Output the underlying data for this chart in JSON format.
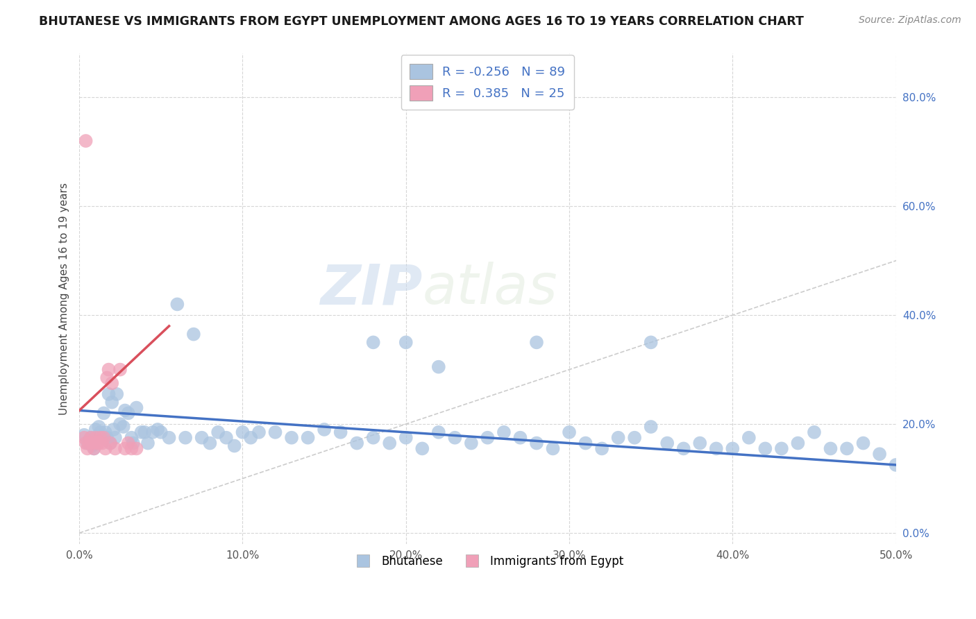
{
  "title": "BHUTANESE VS IMMIGRANTS FROM EGYPT UNEMPLOYMENT AMONG AGES 16 TO 19 YEARS CORRELATION CHART",
  "source": "Source: ZipAtlas.com",
  "ylabel": "Unemployment Among Ages 16 to 19 years",
  "xlim": [
    0.0,
    0.5
  ],
  "ylim": [
    -0.02,
    0.88
  ],
  "xticks": [
    0.0,
    0.1,
    0.2,
    0.3,
    0.4,
    0.5
  ],
  "xticklabels": [
    "0.0%",
    "10.0%",
    "20.0%",
    "30.0%",
    "40.0%",
    "50.0%"
  ],
  "yticks": [
    0.0,
    0.2,
    0.4,
    0.6,
    0.8
  ],
  "yticklabels": [
    "0.0%",
    "20.0%",
    "40.0%",
    "60.0%",
    "80.0%"
  ],
  "bhutanese_color": "#aac4e0",
  "egypt_color": "#f0a0b8",
  "trendline_blue": "#4472c4",
  "trendline_pink": "#d94f5c",
  "trendline_gray": "#c0c0c0",
  "legend_label1": "Bhutanese",
  "legend_label2": "Immigrants from Egypt",
  "watermark_zip": "ZIP",
  "watermark_atlas": "atlas",
  "blue_trendline_start_y": 0.225,
  "blue_trendline_end_y": 0.125,
  "pink_trendline_start_x": 0.0,
  "pink_trendline_start_y": 0.225,
  "pink_trendline_end_x": 0.055,
  "pink_trendline_end_y": 0.38,
  "bhutanese_x": [
    0.003,
    0.005,
    0.006,
    0.007,
    0.008,
    0.009,
    0.01,
    0.01,
    0.012,
    0.013,
    0.014,
    0.015,
    0.016,
    0.017,
    0.018,
    0.019,
    0.02,
    0.021,
    0.022,
    0.023,
    0.025,
    0.027,
    0.028,
    0.03,
    0.032,
    0.033,
    0.035,
    0.038,
    0.04,
    0.042,
    0.045,
    0.048,
    0.05,
    0.055,
    0.06,
    0.065,
    0.07,
    0.075,
    0.08,
    0.085,
    0.09,
    0.095,
    0.1,
    0.105,
    0.11,
    0.12,
    0.13,
    0.14,
    0.15,
    0.16,
    0.17,
    0.18,
    0.19,
    0.2,
    0.21,
    0.22,
    0.23,
    0.24,
    0.25,
    0.26,
    0.27,
    0.28,
    0.29,
    0.3,
    0.31,
    0.32,
    0.33,
    0.34,
    0.35,
    0.36,
    0.37,
    0.38,
    0.39,
    0.4,
    0.41,
    0.42,
    0.43,
    0.44,
    0.45,
    0.46,
    0.47,
    0.48,
    0.49,
    0.5,
    0.18,
    0.2,
    0.22,
    0.28,
    0.35
  ],
  "bhutanese_y": [
    0.18,
    0.165,
    0.17,
    0.175,
    0.16,
    0.155,
    0.19,
    0.175,
    0.195,
    0.185,
    0.175,
    0.22,
    0.185,
    0.175,
    0.255,
    0.165,
    0.24,
    0.19,
    0.175,
    0.255,
    0.2,
    0.195,
    0.225,
    0.22,
    0.175,
    0.165,
    0.23,
    0.185,
    0.185,
    0.165,
    0.185,
    0.19,
    0.185,
    0.175,
    0.42,
    0.175,
    0.365,
    0.175,
    0.165,
    0.185,
    0.175,
    0.16,
    0.185,
    0.175,
    0.185,
    0.185,
    0.175,
    0.175,
    0.19,
    0.185,
    0.165,
    0.175,
    0.165,
    0.175,
    0.155,
    0.185,
    0.175,
    0.165,
    0.175,
    0.185,
    0.175,
    0.165,
    0.155,
    0.185,
    0.165,
    0.155,
    0.175,
    0.175,
    0.195,
    0.165,
    0.155,
    0.165,
    0.155,
    0.155,
    0.175,
    0.155,
    0.155,
    0.165,
    0.185,
    0.155,
    0.155,
    0.165,
    0.145,
    0.125,
    0.35,
    0.35,
    0.305,
    0.35,
    0.35
  ],
  "egypt_x": [
    0.003,
    0.004,
    0.005,
    0.006,
    0.007,
    0.008,
    0.009,
    0.01,
    0.011,
    0.012,
    0.013,
    0.014,
    0.015,
    0.016,
    0.017,
    0.018,
    0.019,
    0.02,
    0.022,
    0.025,
    0.028,
    0.03,
    0.032,
    0.035,
    0.004
  ],
  "egypt_y": [
    0.175,
    0.165,
    0.155,
    0.165,
    0.175,
    0.165,
    0.155,
    0.175,
    0.165,
    0.165,
    0.175,
    0.165,
    0.175,
    0.155,
    0.285,
    0.3,
    0.165,
    0.275,
    0.155,
    0.3,
    0.155,
    0.165,
    0.155,
    0.155,
    0.72
  ]
}
